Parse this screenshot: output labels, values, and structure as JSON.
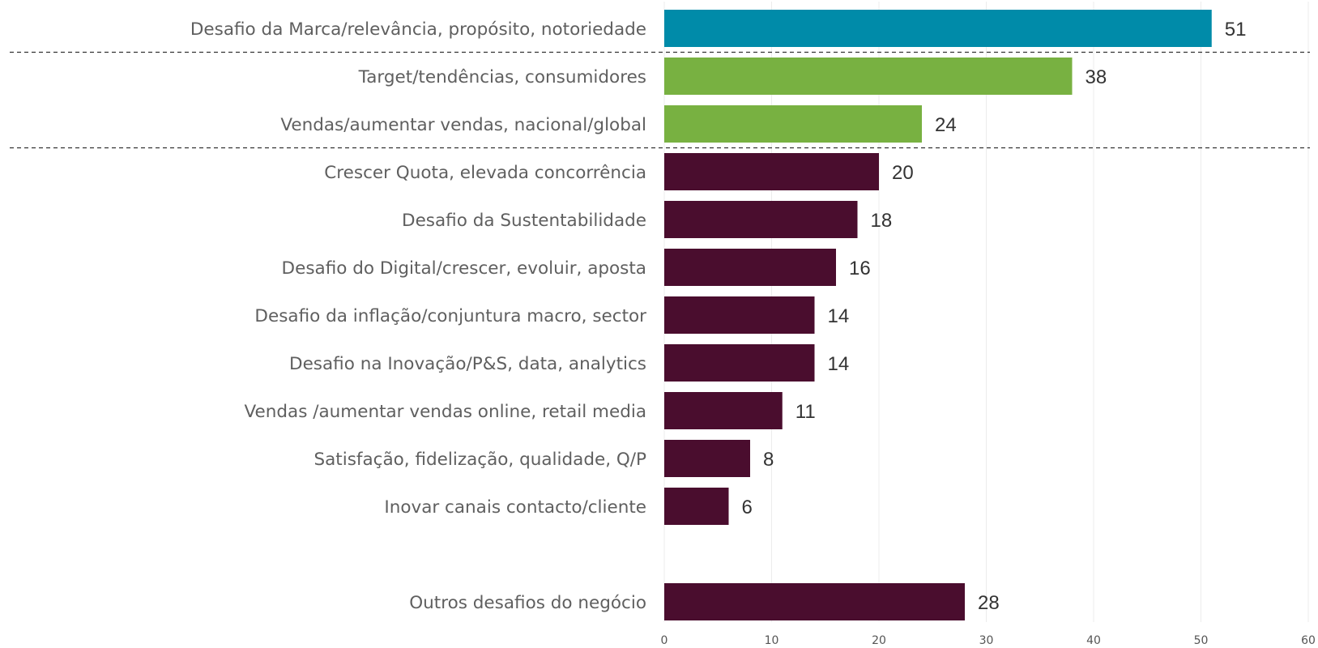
{
  "chart_data": {
    "type": "bar",
    "orientation": "horizontal",
    "categories": [
      "Desafio da Marca/relevância, propósito, notoriedade",
      "Target/tendências, consumidores",
      "Vendas/aumentar vendas, nacional/global",
      "Crescer Quota, elevada concorrência",
      "Desafio da Sustentabilidade",
      "Desafio do Digital/crescer, evoluir, aposta",
      "Desafio da inflação/conjuntura macro, sector",
      "Desafio na Inovação/P&S, data, analytics",
      "Vendas /aumentar vendas online, retail media",
      "Satisfação, fidelização, qualidade, Q/P",
      "Inovar canais contacto/cliente",
      "Outros desafios do negócio"
    ],
    "values": [
      51,
      38,
      24,
      20,
      18,
      16,
      14,
      14,
      11,
      8,
      6,
      28
    ],
    "bar_colors": [
      "#008ba9",
      "#78b141",
      "#78b141",
      "#4a0d2e",
      "#4a0d2e",
      "#4a0d2e",
      "#4a0d2e",
      "#4a0d2e",
      "#4a0d2e",
      "#4a0d2e",
      "#4a0d2e",
      "#4a0d2e"
    ],
    "separators_after_index": [
      0,
      2
    ],
    "xlim": [
      0,
      60
    ],
    "xticks": [
      0,
      10,
      20,
      30,
      40,
      50,
      60
    ],
    "grid": true,
    "title": "",
    "xlabel": "",
    "ylabel": ""
  }
}
